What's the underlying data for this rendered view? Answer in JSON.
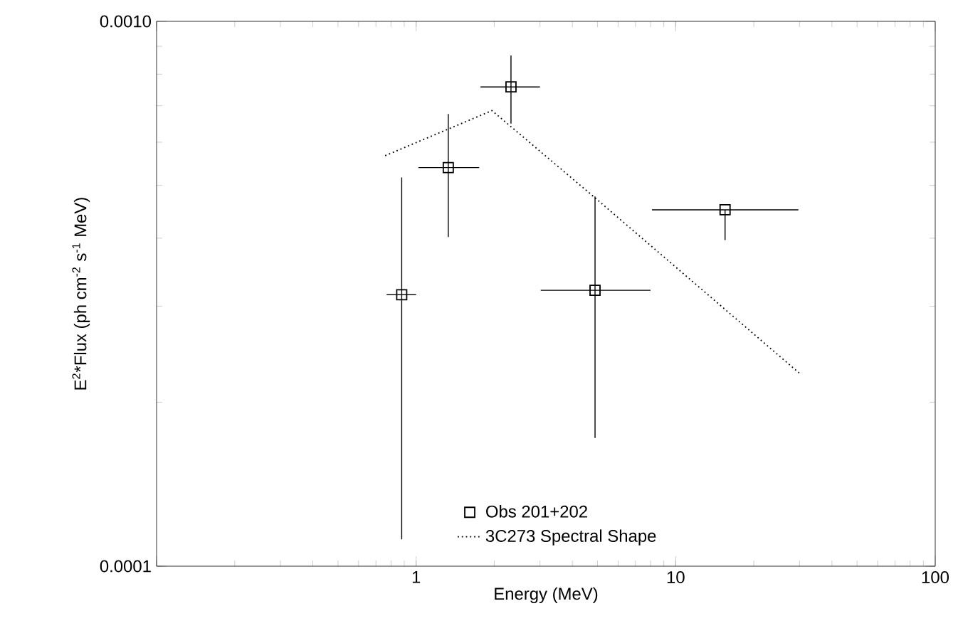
{
  "chart_data": {
    "type": "scatter",
    "xlabel": "Energy (MeV)",
    "ylabel": "E$^{2}$*Flux (ph cm$^{-2}$ s$^{-1}$ MeV)",
    "log": "xy",
    "xlim": [
      0.1,
      100
    ],
    "ylim": [
      0.0001,
      0.001
    ],
    "xticks": [
      {
        "value": 0.1,
        "label": null
      },
      1,
      10,
      100
    ],
    "yticks": [
      {
        "value": 0.0001,
        "label": "0.0001"
      },
      {
        "value": 0.001,
        "label": "0.0010"
      }
    ],
    "legend": "bottom",
    "series": [
      {
        "name": "Obs 201+202",
        "color": "#000000",
        "marker": "square",
        "x": [
          0.88,
          1.33,
          2.32,
          4.89,
          15.5
        ],
        "values": [
          0.000315,
          0.000539,
          0.000758,
          0.000321,
          0.000451
        ],
        "errors": [
          [
            0.000112,
            0.000517
          ],
          [
            0.000402,
            0.000676
          ],
          [
            0.000649,
            0.000866
          ],
          [
            0.000172,
            0.000477
          ],
          [
            0.000397,
            0.000451
          ]
        ],
        "xerrors": [
          [
            0.77,
            1.0
          ],
          [
            1.02,
            1.75
          ],
          [
            1.77,
            3.0
          ],
          [
            3.02,
            8.0
          ],
          [
            8.1,
            29.7
          ]
        ]
      },
      {
        "name": "3C273 Spectral Shape",
        "type": "line",
        "color": "#000000",
        "marker": "none",
        "line_style": "dotted",
        "x": [
          0.76,
          1.96,
          4.75,
          30
        ],
        "values": [
          0.000567,
          0.000686,
          0.00048,
          0.000226
        ]
      }
    ]
  }
}
